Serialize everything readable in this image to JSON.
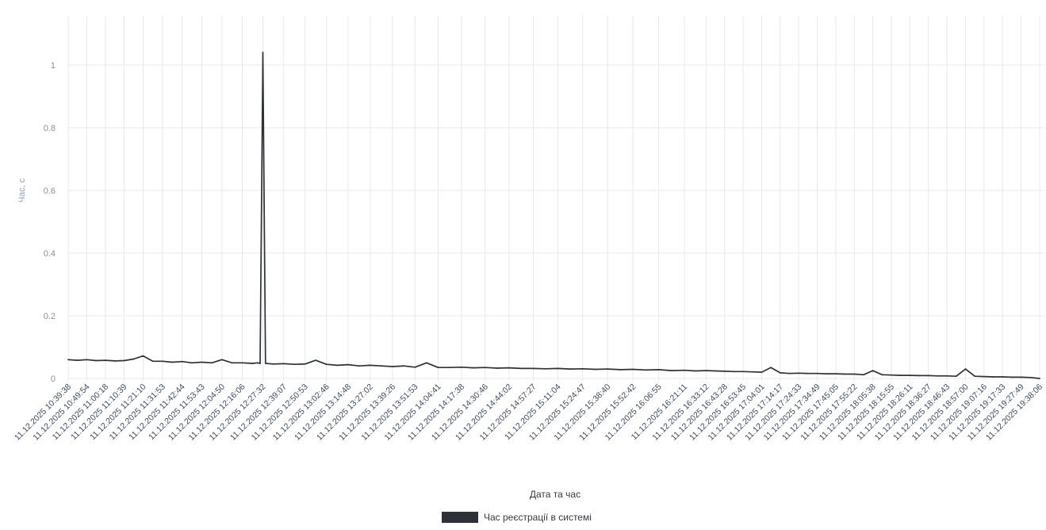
{
  "chart_data": {
    "type": "line",
    "title": "",
    "xlabel": "Дата та час",
    "ylabel": "Час, с",
    "ylim": [
      0,
      1.1
    ],
    "yticks": [
      "0",
      "0.2",
      "0.4",
      "0.6",
      "0.8",
      "1"
    ],
    "ytick_values": [
      0,
      0.2,
      0.4,
      0.6,
      0.8,
      1
    ],
    "grid": true,
    "legend_position": "bottom-center",
    "x_tick_labels": [
      "11.12.2025 10:39:38",
      "11.12.2025 10:49:54",
      "11.12.2025 11:00:18",
      "11.12.2025 11:10:39",
      "11.12.2025 11:21:10",
      "11.12.2025 11:31:53",
      "11.12.2025 11:42:44",
      "11.12.2025 11:53:43",
      "11.12.2025 12:04:50",
      "11.12.2025 12:16:06",
      "11.12.2025 12:27:32",
      "11.12.2025 12:39:07",
      "11.12.2025 12:50:53",
      "11.12.2025 13:02:46",
      "11.12.2025 13:14:48",
      "11.12.2025 13:27:02",
      "11.12.2025 13:39:26",
      "11.12.2025 13:51:53",
      "11.12.2025 14:04:41",
      "11.12.2025 14:17:38",
      "11.12.2025 14:30:46",
      "11.12.2025 14:44:02",
      "11.12.2025 14:57:27",
      "11.12.2025 15:11:04",
      "11.12.2025 15:24:47",
      "11.12.2025 15:38:40",
      "11.12.2025 15:52:42",
      "11.12.2025 16:06:55",
      "11.12.2025 16:21:11",
      "11.12.2025 16:33:12",
      "11.12.2025 16:43:28",
      "11.12.2025 16:53:45",
      "11.12.2025 17:04:01",
      "11.12.2025 17:14:17",
      "11.12.2025 17:24:33",
      "11.12.2025 17:34:49",
      "11.12.2025 17:45:05",
      "11.12.2025 17:55:22",
      "11.12.2025 18:05:38",
      "11.12.2025 18:15:55",
      "11.12.2025 18:26:11",
      "11.12.2025 18:36:27",
      "11.12.2025 18:46:43",
      "11.12.2025 18:57:00",
      "11.12.2025 19:07:16",
      "11.12.2025 19:17:33",
      "11.12.2025 19:27:49",
      "11.12.2025 19:38:06"
    ],
    "series": [
      {
        "name": "Час реєстрації в системі",
        "color": "#2e3238",
        "x": [
          "11.12.2025 10:39:38",
          "11.12.2025 10:44:46",
          "11.12.2025 10:49:54",
          "11.12.2025 10:55:06",
          "11.12.2025 11:00:18",
          "11.12.2025 11:05:28",
          "11.12.2025 11:10:39",
          "11.12.2025 11:15:54",
          "11.12.2025 11:21:10",
          "11.12.2025 11:26:31",
          "11.12.2025 11:31:53",
          "11.12.2025 11:37:18",
          "11.12.2025 11:42:44",
          "11.12.2025 11:48:13",
          "11.12.2025 11:53:43",
          "11.12.2025 11:59:16",
          "11.12.2025 12:04:50",
          "11.12.2025 12:10:28",
          "11.12.2025 12:16:06",
          "11.12.2025 12:21:49",
          "11.12.2025 12:24:40",
          "11.12.2025 12:26:00",
          "11.12.2025 12:27:32",
          "11.12.2025 12:29:00",
          "11.12.2025 12:33:19",
          "11.12.2025 12:39:07",
          "11.12.2025 12:45:00",
          "11.12.2025 12:50:53",
          "11.12.2025 12:56:50",
          "11.12.2025 13:02:46",
          "11.12.2025 13:08:47",
          "11.12.2025 13:14:48",
          "11.12.2025 13:20:55",
          "11.12.2025 13:27:02",
          "11.12.2025 13:33:14",
          "11.12.2025 13:39:26",
          "11.12.2025 13:45:40",
          "11.12.2025 13:51:53",
          "11.12.2025 13:58:17",
          "11.12.2025 14:04:41",
          "11.12.2025 14:11:10",
          "11.12.2025 14:17:38",
          "11.12.2025 14:24:12",
          "11.12.2025 14:30:46",
          "11.12.2025 14:37:24",
          "11.12.2025 14:44:02",
          "11.12.2025 14:50:45",
          "11.12.2025 14:57:27",
          "11.12.2025 15:04:16",
          "11.12.2025 15:11:04",
          "11.12.2025 15:17:56",
          "11.12.2025 15:24:47",
          "11.12.2025 15:31:44",
          "11.12.2025 15:38:40",
          "11.12.2025 15:45:41",
          "11.12.2025 15:52:42",
          "11.12.2025 15:59:49",
          "11.12.2025 16:06:55",
          "11.12.2025 16:14:03",
          "11.12.2025 16:21:11",
          "11.12.2025 16:27:12",
          "11.12.2025 16:33:12",
          "11.12.2025 16:38:20",
          "11.12.2025 16:43:28",
          "11.12.2025 16:48:37",
          "11.12.2025 16:53:45",
          "11.12.2025 16:58:53",
          "11.12.2025 17:04:01",
          "11.12.2025 17:09:09",
          "11.12.2025 17:14:17",
          "11.12.2025 17:19:25",
          "11.12.2025 17:24:33",
          "11.12.2025 17:29:41",
          "11.12.2025 17:34:49",
          "11.12.2025 17:39:57",
          "11.12.2025 17:45:05",
          "11.12.2025 17:50:14",
          "11.12.2025 17:55:22",
          "11.12.2025 18:00:30",
          "11.12.2025 18:05:38",
          "11.12.2025 18:10:47",
          "11.12.2025 18:15:55",
          "11.12.2025 18:21:03",
          "11.12.2025 18:26:11",
          "11.12.2025 18:31:19",
          "11.12.2025 18:36:27",
          "11.12.2025 18:41:35",
          "11.12.2025 18:46:43",
          "11.12.2025 18:51:52",
          "11.12.2025 18:57:00",
          "11.12.2025 19:02:08",
          "11.12.2025 19:07:16",
          "11.12.2025 19:12:25",
          "11.12.2025 19:17:33",
          "11.12.2025 19:22:41",
          "11.12.2025 19:27:49",
          "11.12.2025 19:32:58",
          "11.12.2025 19:38:06"
        ],
        "values": [
          0.06,
          0.058,
          0.06,
          0.057,
          0.058,
          0.056,
          0.057,
          0.062,
          0.072,
          0.055,
          0.055,
          0.052,
          0.054,
          0.05,
          0.052,
          0.05,
          0.06,
          0.05,
          0.05,
          0.048,
          0.05,
          0.048,
          1.04,
          0.048,
          0.046,
          0.047,
          0.045,
          0.046,
          0.058,
          0.045,
          0.042,
          0.044,
          0.04,
          0.042,
          0.04,
          0.038,
          0.04,
          0.036,
          0.05,
          0.035,
          0.035,
          0.036,
          0.034,
          0.035,
          0.033,
          0.034,
          0.032,
          0.032,
          0.031,
          0.032,
          0.03,
          0.031,
          0.029,
          0.03,
          0.028,
          0.029,
          0.027,
          0.028,
          0.025,
          0.026,
          0.024,
          0.025,
          0.024,
          0.023,
          0.022,
          0.022,
          0.021,
          0.02,
          0.035,
          0.018,
          0.016,
          0.017,
          0.016,
          0.016,
          0.015,
          0.015,
          0.014,
          0.014,
          0.012,
          0.025,
          0.012,
          0.011,
          0.01,
          0.01,
          0.009,
          0.009,
          0.008,
          0.008,
          0.007,
          0.03,
          0.007,
          0.006,
          0.005,
          0.005,
          0.004,
          0.004,
          0.003,
          0.0
        ]
      }
    ]
  }
}
